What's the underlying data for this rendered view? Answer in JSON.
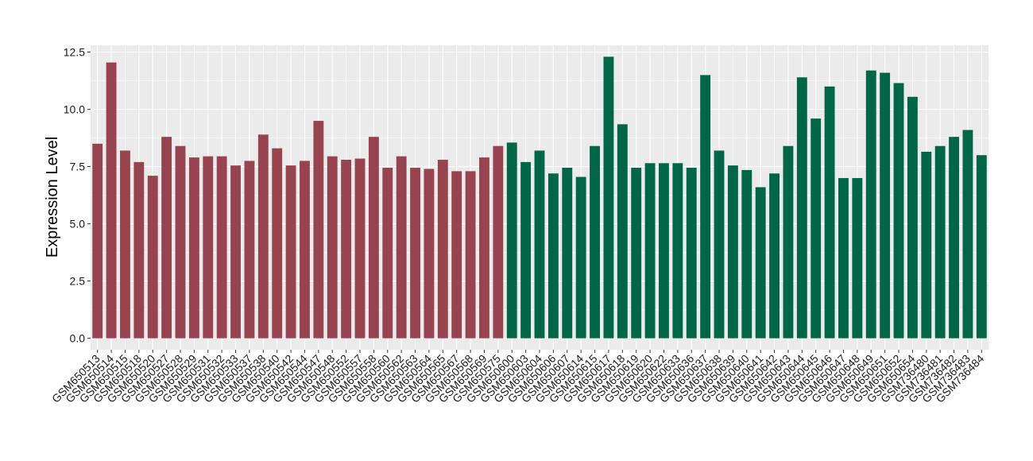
{
  "chart_data": {
    "type": "bar",
    "title": "",
    "xlabel": "",
    "ylabel": "Expression Level",
    "ylim": [
      -0.5,
      12.8
    ],
    "yticks": [
      0.0,
      2.5,
      5.0,
      7.5,
      10.0,
      12.5
    ],
    "ytick_labels": [
      "0.0",
      "2.5",
      "5.0",
      "7.5",
      "10.0",
      "12.5"
    ],
    "grid": true,
    "legend": "none",
    "colors": {
      "group_1": "#974350",
      "group_2": "#006645",
      "panel": "#ebebeb",
      "grid": "#ffffff"
    },
    "categories": [
      "GSM650513",
      "GSM650514",
      "GSM650515",
      "GSM650518",
      "GSM650520",
      "GSM650527",
      "GSM650528",
      "GSM650529",
      "GSM650531",
      "GSM650532",
      "GSM650533",
      "GSM650537",
      "GSM650538",
      "GSM650540",
      "GSM650542",
      "GSM650544",
      "GSM650547",
      "GSM650548",
      "GSM650552",
      "GSM650557",
      "GSM650558",
      "GSM650560",
      "GSM650562",
      "GSM650563",
      "GSM650564",
      "GSM650565",
      "GSM650567",
      "GSM650568",
      "GSM650569",
      "GSM650575",
      "GSM650600",
      "GSM650603",
      "GSM650604",
      "GSM650606",
      "GSM650607",
      "GSM650614",
      "GSM650615",
      "GSM650617",
      "GSM650618",
      "GSM650619",
      "GSM650620",
      "GSM650622",
      "GSM650633",
      "GSM650636",
      "GSM650637",
      "GSM650638",
      "GSM650639",
      "GSM650640",
      "GSM650641",
      "GSM650642",
      "GSM650643",
      "GSM650644",
      "GSM650645",
      "GSM650646",
      "GSM650647",
      "GSM650648",
      "GSM650649",
      "GSM650651",
      "GSM650652",
      "GSM650654",
      "GSM736480",
      "GSM736481",
      "GSM736482",
      "GSM736483",
      "GSM736484"
    ],
    "values": [
      8.5,
      12.05,
      8.2,
      7.7,
      7.1,
      8.8,
      8.4,
      7.9,
      7.95,
      7.95,
      7.55,
      7.75,
      8.9,
      8.3,
      7.55,
      7.75,
      9.5,
      7.95,
      7.8,
      7.85,
      8.8,
      7.45,
      7.95,
      7.45,
      7.4,
      7.8,
      7.3,
      7.3,
      7.9,
      8.4,
      8.55,
      7.7,
      8.2,
      7.2,
      7.45,
      7.05,
      8.4,
      12.3,
      9.35,
      7.45,
      7.65,
      7.65,
      7.65,
      7.45,
      11.5,
      8.2,
      7.55,
      7.35,
      6.6,
      7.2,
      8.4,
      11.4,
      9.6,
      11.0,
      7.0,
      7.0,
      11.7,
      11.6,
      11.15,
      10.55,
      8.15,
      8.4,
      8.8,
      9.1,
      8.0
    ],
    "groups": [
      1,
      1,
      1,
      1,
      1,
      1,
      1,
      1,
      1,
      1,
      1,
      1,
      1,
      1,
      1,
      1,
      1,
      1,
      1,
      1,
      1,
      1,
      1,
      1,
      1,
      1,
      1,
      1,
      1,
      1,
      2,
      2,
      2,
      2,
      2,
      2,
      2,
      2,
      2,
      2,
      2,
      2,
      2,
      2,
      2,
      2,
      2,
      2,
      2,
      2,
      2,
      2,
      2,
      2,
      2,
      2,
      2,
      2,
      2,
      2,
      2,
      2,
      2,
      2,
      2
    ]
  }
}
